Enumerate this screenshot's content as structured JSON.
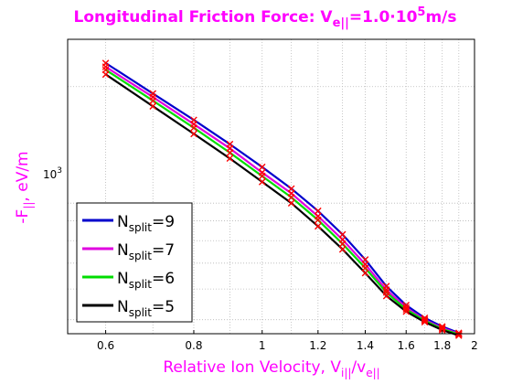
{
  "colors": {
    "title": "#ff00ff",
    "frame": "#000000",
    "grid": "#b8b8b8",
    "marker": "#ff0000"
  },
  "chart_data": {
    "type": "line",
    "title": {
      "text": "Longitudinal Friction Force: V",
      "sub": "e||",
      "eq": "=1.0·10",
      "sup": "5",
      "unit": "m/s"
    },
    "xlabel": {
      "text": "Relative Ion Velocity, V",
      "sub1": "i||",
      "slash": "/v",
      "sub2": "e||"
    },
    "ylabel": {
      "text": "-F",
      "sub": "||",
      "unit": ", eV/m"
    },
    "x_scale": "log",
    "y_scale": "log",
    "xlim": [
      0.53,
      2.0
    ],
    "ylim": [
      460,
      2650
    ],
    "grid": true,
    "legend_position": "bottom-left",
    "x_ticks": [
      "0.6",
      "0.8",
      "1",
      "1.2",
      "1.4",
      "1.6",
      "1.8",
      "2"
    ],
    "y_tick_label": {
      "base": "10",
      "exp": "3"
    },
    "x": [
      0.6,
      0.7,
      0.8,
      0.9,
      1.0,
      1.1,
      1.2,
      1.3,
      1.4,
      1.5,
      1.6,
      1.7,
      1.8,
      1.9
    ],
    "series": [
      {
        "name": "N",
        "sub": "split",
        "eq": "=9",
        "color": "#0000cc",
        "values": [
          2300,
          1920,
          1640,
          1420,
          1240,
          1090,
          955,
          830,
          715,
          610,
          545,
          505,
          480,
          462
        ]
      },
      {
        "name": "N",
        "sub": "split",
        "eq": "=7",
        "color": "#e000e0",
        "values": [
          2250,
          1880,
          1600,
          1385,
          1200,
          1060,
          925,
          805,
          695,
          597,
          537,
          500,
          476,
          460
        ]
      },
      {
        "name": "N",
        "sub": "split",
        "eq": "=6",
        "color": "#00dd00",
        "values": [
          2210,
          1840,
          1565,
          1350,
          1175,
          1035,
          905,
          785,
          680,
          588,
          532,
          497,
          473,
          458
        ]
      },
      {
        "name": "N",
        "sub": "split",
        "eq": "=5",
        "color": "#000000",
        "values": [
          2150,
          1780,
          1510,
          1305,
          1135,
          1000,
          872,
          760,
          660,
          576,
          525,
          493,
          470,
          455
        ]
      }
    ]
  }
}
